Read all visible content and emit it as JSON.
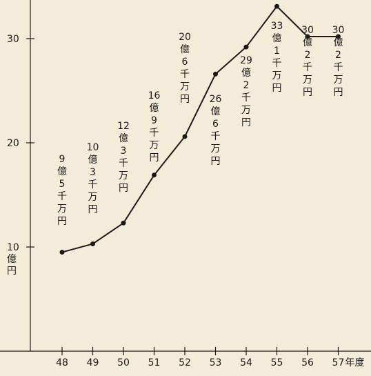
{
  "chart_data": {
    "type": "line",
    "title": "",
    "xlabel": "",
    "ylabel": "",
    "x_unit": "年度",
    "y_unit": "億円",
    "ylim": [
      0,
      33.5
    ],
    "yticks": [
      10,
      20,
      30
    ],
    "x": [
      "48",
      "49",
      "50",
      "51",
      "52",
      "53",
      "54",
      "55",
      "56",
      "57"
    ],
    "series": [
      {
        "values": [
          9.5,
          10.3,
          12.3,
          16.9,
          20.6,
          26.6,
          29.2,
          33.1,
          30.2,
          30.2
        ]
      }
    ],
    "data_labels": [
      "9億5千万円",
      "10億3千万円",
      "12億3千万円",
      "16億9千万円",
      "20億6千万円",
      "26億6千万円",
      "29億2千万円",
      "33億1千万円",
      "30億2千万円",
      "30億2千万円"
    ],
    "line_color": "#1a1a1a",
    "background": "#f3ecd9",
    "grid": false
  }
}
